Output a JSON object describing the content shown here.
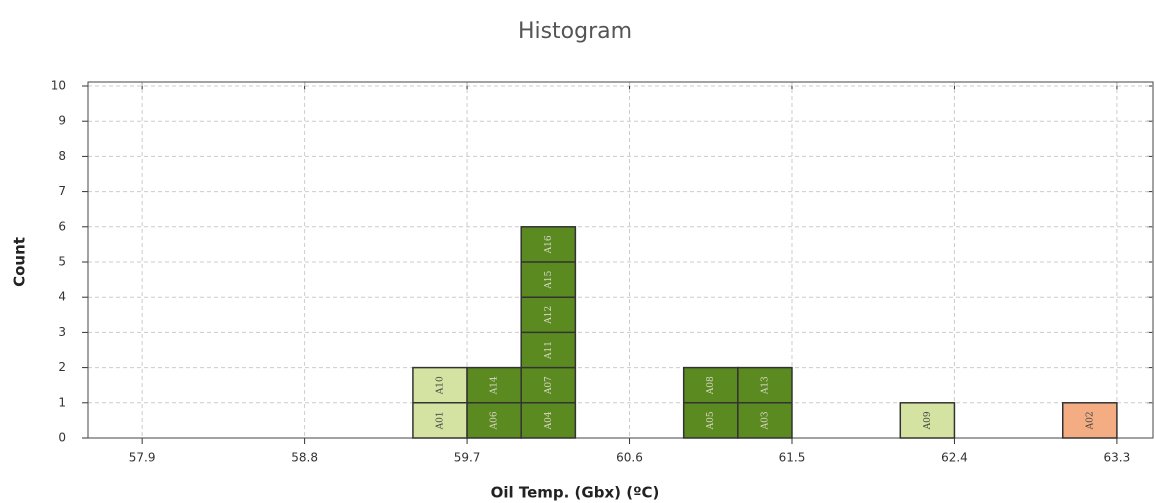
{
  "chart_data": {
    "type": "histogram",
    "title": "Histogram",
    "x_label": "Oil Temp. (Gbx) (ºC)",
    "y_label": "Count",
    "bins": [
      59.4,
      59.7,
      60.0,
      60.3,
      60.6,
      60.9,
      61.2,
      61.5,
      61.8,
      62.1,
      62.4,
      62.7,
      63.0,
      63.3
    ],
    "values": [
      2,
      2,
      6,
      0,
      0,
      2,
      2,
      0,
      0,
      1,
      0,
      0,
      1
    ],
    "cell_labels": [
      [
        "A01",
        "A10"
      ],
      [
        "A06",
        "A14"
      ],
      [
        "A04",
        "A07",
        "A11",
        "A12",
        "A15",
        "A16"
      ],
      [],
      [],
      [
        "A05",
        "A08"
      ],
      [
        "A03",
        "A13"
      ],
      [],
      [],
      [
        "A09"
      ],
      [],
      [],
      [
        "A02"
      ]
    ],
    "colors": [
      "#d4e3a1",
      "#5b8a20",
      "#5b8a20",
      null,
      null,
      "#5b8a20",
      "#5b8a20",
      null,
      null,
      "#d4e3a1",
      null,
      null,
      "#f4ad83"
    ],
    "xlim": [
      57.6,
      63.5
    ],
    "ylim": [
      0,
      10
    ],
    "xticks": [
      57.9,
      58.8,
      59.7,
      60.6,
      61.5,
      62.4,
      63.3
    ],
    "yticks": [
      0,
      1,
      2,
      3,
      4,
      5,
      6,
      7,
      8,
      9,
      10
    ],
    "grid": true
  }
}
